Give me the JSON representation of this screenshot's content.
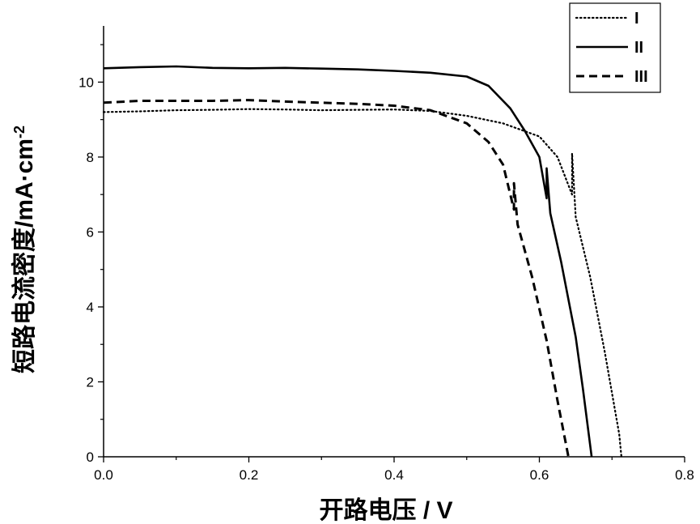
{
  "chart_data": {
    "type": "line",
    "title": "",
    "xlabel": "开路电压 / V",
    "ylabel": "短路电流密度/mA·cm",
    "ylabel_sup": "-2",
    "xlim": [
      0.0,
      0.8
    ],
    "ylim": [
      0,
      11.5
    ],
    "xticks": [
      "0.0",
      "0.2",
      "0.4",
      "0.6",
      "0.8"
    ],
    "yticks": [
      "0",
      "2",
      "4",
      "6",
      "8",
      "10"
    ],
    "grid": false,
    "legend_position": "top-right",
    "series": [
      {
        "name": "I",
        "style": "dotted",
        "x": [
          0.0,
          0.05,
          0.1,
          0.15,
          0.2,
          0.25,
          0.3,
          0.35,
          0.4,
          0.45,
          0.5,
          0.55,
          0.6,
          0.625,
          0.645,
          0.645,
          0.65,
          0.67,
          0.69,
          0.71,
          0.713
        ],
        "y": [
          9.2,
          9.22,
          9.25,
          9.26,
          9.28,
          9.27,
          9.25,
          9.26,
          9.27,
          9.23,
          9.1,
          8.9,
          8.55,
          8.0,
          7.0,
          8.1,
          6.4,
          4.8,
          2.8,
          0.6,
          0.0
        ]
      },
      {
        "name": "II",
        "style": "solid",
        "x": [
          0.0,
          0.05,
          0.1,
          0.15,
          0.2,
          0.25,
          0.3,
          0.35,
          0.4,
          0.45,
          0.5,
          0.53,
          0.56,
          0.58,
          0.6,
          0.61,
          0.61,
          0.615,
          0.63,
          0.65,
          0.66,
          0.672
        ],
        "y": [
          10.37,
          10.4,
          10.42,
          10.38,
          10.37,
          10.38,
          10.36,
          10.34,
          10.3,
          10.25,
          10.15,
          9.9,
          9.3,
          8.7,
          8.0,
          6.9,
          7.7,
          6.5,
          5.2,
          3.2,
          1.8,
          0.0
        ]
      },
      {
        "name": "III",
        "style": "dashed",
        "x": [
          0.0,
          0.05,
          0.1,
          0.15,
          0.2,
          0.25,
          0.3,
          0.35,
          0.4,
          0.45,
          0.5,
          0.53,
          0.55,
          0.565,
          0.565,
          0.57,
          0.59,
          0.61,
          0.625,
          0.64
        ],
        "y": [
          9.45,
          9.5,
          9.5,
          9.5,
          9.52,
          9.48,
          9.45,
          9.42,
          9.37,
          9.25,
          8.9,
          8.4,
          7.8,
          6.6,
          7.3,
          6.2,
          4.8,
          3.1,
          1.5,
          0.0
        ]
      }
    ]
  }
}
